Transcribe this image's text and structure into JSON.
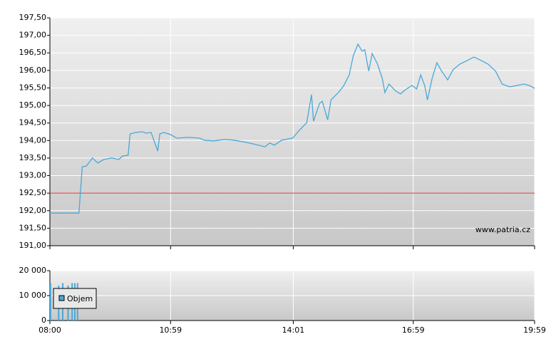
{
  "chart_data": [
    {
      "type": "line",
      "color": "#4aa8d8",
      "x": [
        "08:00",
        "08:43",
        "08:48",
        "08:54",
        "09:03",
        "09:11",
        "09:20",
        "09:32",
        "09:42",
        "09:48",
        "09:56",
        "09:59",
        "10:07",
        "10:17",
        "10:23",
        "10:30",
        "10:40",
        "10:43",
        "10:49",
        "10:59",
        "11:08",
        "11:26",
        "11:42",
        "11:49",
        "12:03",
        "12:19",
        "12:33",
        "12:51",
        "13:07",
        "13:19",
        "13:26",
        "13:33",
        "13:44",
        "14:00",
        "14:10",
        "14:21",
        "14:28",
        "14:31",
        "14:40",
        "14:44",
        "14:52",
        "14:57",
        "15:08",
        "15:16",
        "15:24",
        "15:30",
        "15:37",
        "15:43",
        "15:47",
        "15:53",
        "15:58",
        "16:06",
        "16:13",
        "16:17",
        "16:23",
        "16:33",
        "16:40",
        "16:49",
        "16:57",
        "17:04",
        "17:10",
        "17:16",
        "17:20",
        "17:27",
        "17:34",
        "17:41",
        "17:50",
        "17:58",
        "18:08",
        "18:19",
        "18:29",
        "18:40",
        "18:50",
        "19:01",
        "19:11",
        "19:22",
        "19:33",
        "19:43",
        "19:51",
        "19:59"
      ],
      "values": [
        191.93,
        191.93,
        193.25,
        193.27,
        193.5,
        193.36,
        193.46,
        193.5,
        193.46,
        193.56,
        193.58,
        194.19,
        194.23,
        194.25,
        194.21,
        194.23,
        193.7,
        194.19,
        194.23,
        194.17,
        194.07,
        194.09,
        194.07,
        194.01,
        193.99,
        194.03,
        194.01,
        193.95,
        193.88,
        193.82,
        193.93,
        193.87,
        194.01,
        194.07,
        194.29,
        194.51,
        195.31,
        194.55,
        195.06,
        195.12,
        194.59,
        195.16,
        195.37,
        195.57,
        195.87,
        196.42,
        196.75,
        196.55,
        196.59,
        195.98,
        196.48,
        196.18,
        195.77,
        195.37,
        195.61,
        195.41,
        195.33,
        195.47,
        195.57,
        195.47,
        195.87,
        195.57,
        195.16,
        195.77,
        196.22,
        195.98,
        195.73,
        196.02,
        196.18,
        196.28,
        196.38,
        196.28,
        196.18,
        195.98,
        195.61,
        195.53,
        195.57,
        195.61,
        195.57,
        195.49
      ],
      "xlim": [
        "08:00",
        "19:59"
      ],
      "ylim": [
        191,
        197.5
      ],
      "yticks": [
        {
          "value": 191,
          "label": "191,00"
        },
        {
          "value": 191.5,
          "label": "191,50"
        },
        {
          "value": 192,
          "label": "192,00"
        },
        {
          "value": 192.5,
          "label": "192,50"
        },
        {
          "value": 193,
          "label": "193,00"
        },
        {
          "value": 193.5,
          "label": "193,50"
        },
        {
          "value": 194,
          "label": "194,00"
        },
        {
          "value": 194.5,
          "label": "194,50"
        },
        {
          "value": 195,
          "label": "195,00"
        },
        {
          "value": 195.5,
          "label": "195,50"
        },
        {
          "value": 196,
          "label": "196,00"
        },
        {
          "value": 196.5,
          "label": "196,50"
        },
        {
          "value": 197,
          "label": "197,00"
        },
        {
          "value": 197.5,
          "label": "197,50"
        }
      ],
      "reference_line": {
        "value": 192.5,
        "color": "#e8312f"
      },
      "watermark": "www.patria.cz",
      "grid": true
    },
    {
      "type": "bar",
      "x": [
        "08:01",
        "08:13",
        "08:19",
        "08:27",
        "08:33",
        "08:37",
        "08:41"
      ],
      "series": [
        {
          "name": "Objem",
          "color": "#4aa8d8",
          "values": [
            15000,
            14000,
            15000,
            14000,
            15000,
            15000,
            15000
          ]
        }
      ],
      "xlim": [
        "08:00",
        "19:59"
      ],
      "xticks": [
        "08:00",
        "10:59",
        "14:01",
        "16:59",
        "19:59"
      ],
      "ylim": [
        0,
        20000
      ],
      "yticks": [
        0,
        {
          "value": 10000,
          "label": "10 000"
        },
        {
          "value": 20000,
          "label": "20 000"
        }
      ],
      "legend": "upper left",
      "grid": true
    }
  ]
}
